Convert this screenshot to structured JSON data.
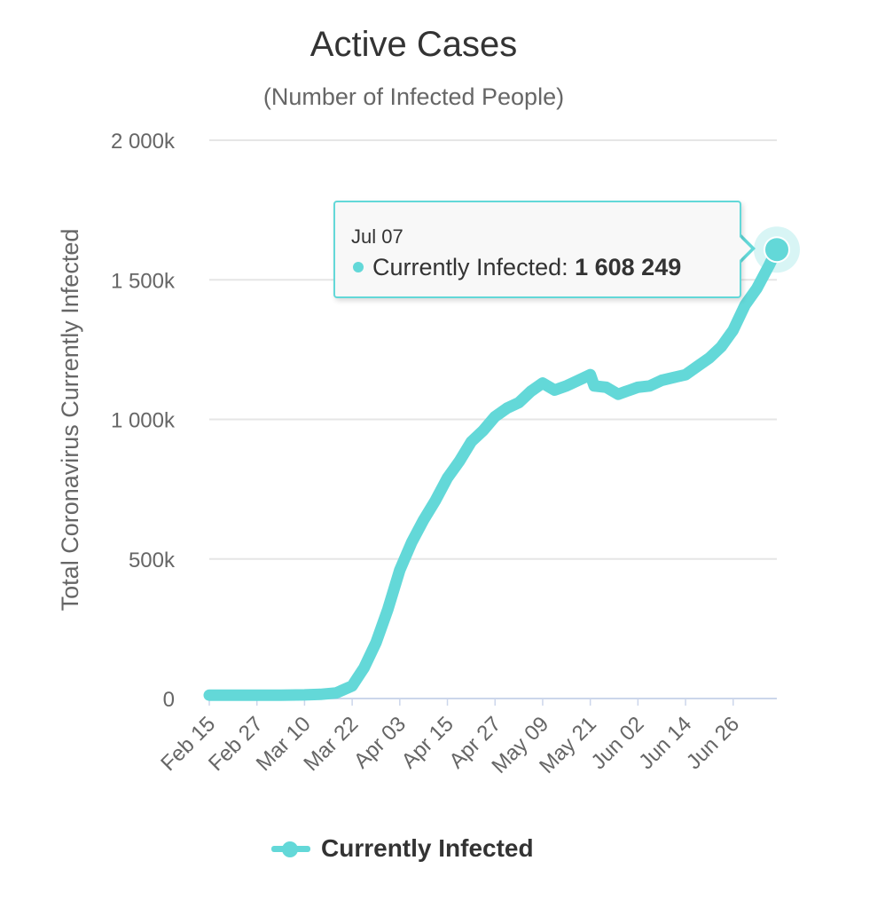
{
  "colors": {
    "series": "#63d8d8",
    "grid": "#e6e6e6",
    "axis_text": "#666666",
    "title": "#333333"
  },
  "chart_data": {
    "type": "line",
    "title": "Active Cases",
    "subtitle": "(Number of Infected People)",
    "ylabel": "Total Coronavirus Currently Infected",
    "xlabel": "",
    "ylim": [
      0,
      2000000
    ],
    "y_ticks": [
      {
        "value": 0,
        "label": "0"
      },
      {
        "value": 500000,
        "label": "500k"
      },
      {
        "value": 1000000,
        "label": "1 000k"
      },
      {
        "value": 1500000,
        "label": "1 500k"
      },
      {
        "value": 2000000,
        "label": "2 000k"
      }
    ],
    "x_tick_labels": [
      "Feb 15",
      "Feb 27",
      "Mar 10",
      "Mar 22",
      "Apr 03",
      "Apr 15",
      "Apr 27",
      "May 09",
      "May 21",
      "Jun 02",
      "Jun 14",
      "Jun 26"
    ],
    "grid": true,
    "legend": "bottom",
    "series": [
      {
        "name": "Currently Infected",
        "x": [
          "Feb 15",
          "Feb 21",
          "Feb 27",
          "Mar 04",
          "Mar 10",
          "Mar 14",
          "Mar 18",
          "Mar 22",
          "Mar 25",
          "Mar 28",
          "Mar 31",
          "Apr 03",
          "Apr 06",
          "Apr 09",
          "Apr 12",
          "Apr 15",
          "Apr 18",
          "Apr 21",
          "Apr 24",
          "Apr 27",
          "Apr 30",
          "May 03",
          "May 06",
          "May 09",
          "May 12",
          "May 15",
          "May 18",
          "May 21",
          "May 22",
          "May 25",
          "May 28",
          "May 29",
          "May 30",
          "May 31",
          "Jun 02",
          "Jun 05",
          "Jun 08",
          "Jun 11",
          "Jun 14",
          "Jun 17",
          "Jun 20",
          "Jun 23",
          "Jun 26",
          "Jun 29",
          "Jul 02",
          "Jul 05",
          "Jul 07"
        ],
        "values": [
          12000,
          12000,
          12000,
          12000,
          13000,
          15000,
          20000,
          45000,
          110000,
          200000,
          320000,
          460000,
          560000,
          640000,
          710000,
          790000,
          850000,
          920000,
          960000,
          1010000,
          1040000,
          1060000,
          1100000,
          1130000,
          1105000,
          1120000,
          1140000,
          1160000,
          1120000,
          1115000,
          1090000,
          1095000,
          1100000,
          1105000,
          1115000,
          1120000,
          1140000,
          1150000,
          1160000,
          1190000,
          1220000,
          1260000,
          1320000,
          1410000,
          1470000,
          1550000,
          1608249
        ]
      }
    ],
    "tooltip": {
      "date": "Jul 07",
      "series": "Currently Infected",
      "label": "Currently Infected: ",
      "value": "1 608 249"
    }
  }
}
